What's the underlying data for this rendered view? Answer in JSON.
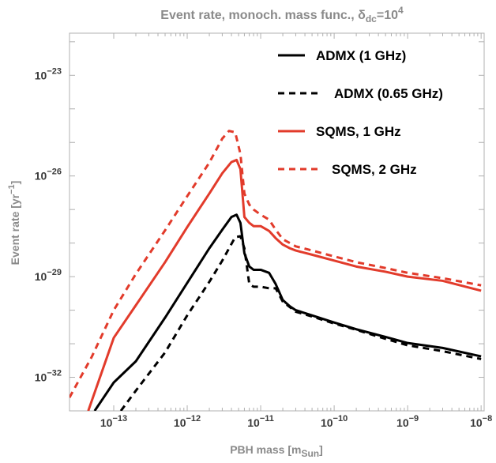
{
  "chart_data": {
    "type": "line",
    "title": {
      "main": "Event rate, monoch. mass func., δ",
      "sub": "dc",
      "eq": "=10",
      "sup": "4"
    },
    "xlabel": {
      "main": "PBH mass [m",
      "sub": "Sun",
      "end": "]"
    },
    "ylabel": {
      "main": "Event rate [yr",
      "sup": "−1",
      "end": "]"
    },
    "x_scale": "log",
    "y_scale": "log",
    "xlim": [
      2.5e-14,
      1.1e-08
    ],
    "ylim": [
      1e-33,
      1.8e-22
    ],
    "x_ticks": [
      {
        "value": 1e-13,
        "base": "10",
        "exp": "−13"
      },
      {
        "value": 1e-12,
        "base": "10",
        "exp": "−12"
      },
      {
        "value": 1e-11,
        "base": "10",
        "exp": "−11"
      },
      {
        "value": 1e-10,
        "base": "10",
        "exp": "−10"
      },
      {
        "value": 1e-09,
        "base": "10",
        "exp": "−9"
      },
      {
        "value": 1e-08,
        "base": "10",
        "exp": "−8"
      }
    ],
    "y_ticks": [
      {
        "value": 1e-23,
        "base": "10",
        "exp": "−23"
      },
      {
        "value": 1e-26,
        "base": "10",
        "exp": "−26"
      },
      {
        "value": 1e-29,
        "base": "10",
        "exp": "−29"
      },
      {
        "value": 1e-32,
        "base": "10",
        "exp": "−32"
      }
    ],
    "legend_position": "top-right",
    "series": [
      {
        "name": "ADMX (1 GHz)",
        "color": "#000000",
        "dash": "solid",
        "x": [
          5.5e-14,
          1e-13,
          2e-13,
          5e-13,
          1e-12,
          2e-12,
          3e-12,
          4e-12,
          4.7e-12,
          5.3e-12,
          6e-12,
          7e-12,
          8e-12,
          1e-11,
          1.3e-11,
          1.6e-11,
          2e-11,
          2.5e-11,
          3e-11,
          5e-11,
          1e-10,
          2e-10,
          5e-10,
          1e-09,
          3e-09,
          1e-08
        ],
        "y": [
          1e-33,
          7e-33,
          3e-32,
          6e-31,
          6.5e-30,
          7e-29,
          2.5e-28,
          6e-28,
          7e-28,
          4e-28,
          5e-29,
          2e-29,
          1.6e-29,
          1.6e-29,
          1.3e-29,
          6e-30,
          2e-30,
          1.3e-30,
          1e-30,
          7e-31,
          4.3e-31,
          2.7e-31,
          1.6e-31,
          1.05e-31,
          7.5e-32,
          4.2e-32
        ]
      },
      {
        "name": "ADMX (0.65 GHz)",
        "color": "#000000",
        "dash": "dashed",
        "x": [
          1.25e-13,
          2e-13,
          5e-13,
          1e-12,
          2e-12,
          3e-12,
          4.5e-12,
          5.3e-12,
          6e-12,
          7e-12,
          8e-12,
          1e-11,
          1.3e-11,
          1.6e-11,
          2e-11,
          3e-11,
          5e-11,
          1e-10,
          2e-10,
          5e-10,
          1e-09,
          3e-09,
          1e-08
        ],
        "y": [
          1e-33,
          4e-33,
          5.5e-32,
          7e-31,
          7e-30,
          3e-29,
          1.5e-28,
          1.6e-28,
          7e-29,
          6e-30,
          5e-30,
          5e-30,
          4.5e-30,
          4.5e-30,
          1.8e-30,
          9e-31,
          6.5e-31,
          4e-31,
          2.6e-31,
          1.4e-31,
          9e-32,
          6e-32,
          3.5e-32
        ]
      },
      {
        "name": "SQMS, 1 GHz",
        "color": "#e23b2b",
        "dash": "solid",
        "x": [
          4.5e-14,
          1e-13,
          2e-13,
          5e-13,
          1e-12,
          2e-12,
          3e-12,
          4e-12,
          4.7e-12,
          5.3e-12,
          6e-12,
          7e-12,
          8e-12,
          1e-11,
          1.3e-11,
          1.6e-11,
          2e-11,
          2.5e-11,
          3e-11,
          5e-11,
          1e-10,
          2e-10,
          5e-10,
          1e-09,
          3e-09,
          1e-08
        ],
        "y": [
          1e-33,
          1.5e-31,
          1.4e-30,
          2.7e-29,
          3e-28,
          3e-27,
          1.2e-26,
          2.6e-26,
          3e-26,
          1.6e-26,
          6e-28,
          4e-28,
          3.2e-28,
          3.2e-28,
          2.3e-28,
          1.4e-28,
          9e-29,
          7e-29,
          6e-29,
          4.5e-29,
          3e-29,
          2e-29,
          1.4e-29,
          1e-29,
          7.5e-30,
          3.8e-30
        ]
      },
      {
        "name": "SQMS, 2 GHz",
        "color": "#e23b2b",
        "dash": "dashed",
        "x": [
          2.5e-14,
          5e-14,
          1e-13,
          2e-13,
          5e-13,
          1e-12,
          2e-12,
          3e-12,
          3.7e-12,
          4.5e-12,
          5.3e-12,
          6e-12,
          7e-12,
          8e-12,
          1e-11,
          1.3e-11,
          1.6e-11,
          2e-11,
          2.5e-11,
          3e-11,
          5e-11,
          1e-10,
          2e-10,
          5e-10,
          1e-09,
          3e-09,
          1e-08
        ],
        "y": [
          2.5e-33,
          4e-32,
          1e-30,
          1.2e-29,
          2.4e-28,
          2.5e-27,
          2.5e-26,
          1.3e-25,
          2.2e-25,
          2e-25,
          4.5e-26,
          3e-27,
          1.4e-27,
          1e-27,
          7e-28,
          5e-28,
          2.5e-28,
          1.3e-28,
          1e-28,
          8e-29,
          6e-29,
          4e-29,
          2.7e-29,
          1.8e-29,
          1.3e-29,
          9e-30,
          5.5e-30
        ]
      }
    ]
  }
}
